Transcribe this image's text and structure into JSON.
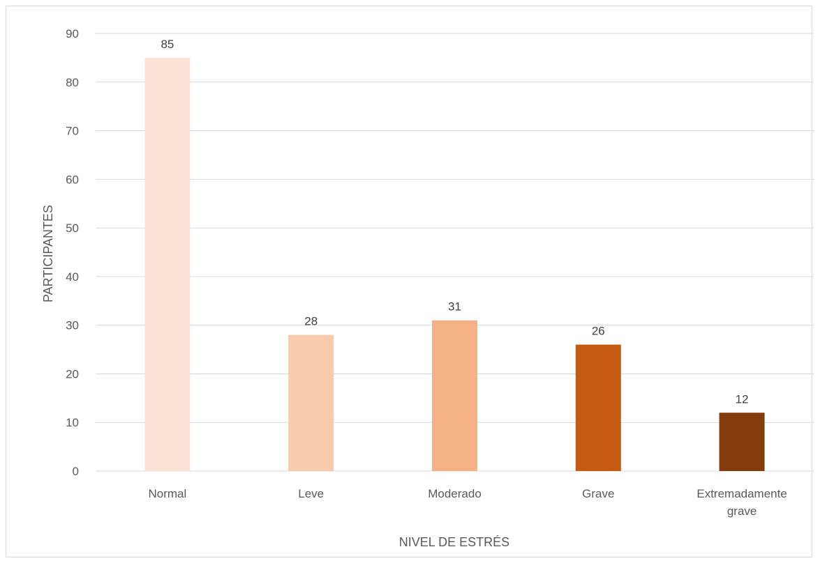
{
  "chart_data": {
    "type": "bar",
    "title": "",
    "xlabel": "NIVEL DE ESTRÉS",
    "ylabel": "PARTICIPANTES",
    "categories": [
      [
        "Normal"
      ],
      [
        "Leve"
      ],
      [
        "Moderado"
      ],
      [
        "Grave"
      ],
      [
        "Extremadamente",
        "grave"
      ]
    ],
    "values": [
      85,
      28,
      31,
      26,
      12
    ],
    "data_labels": [
      "85",
      "28",
      "31",
      "26",
      "12"
    ],
    "colors": [
      "#FAE3D5",
      "#F8CBAD",
      "#F4B183",
      "#C55A11",
      "#843C0C"
    ],
    "ylim": [
      0,
      90
    ],
    "yticks": [
      0,
      10,
      20,
      30,
      40,
      50,
      60,
      70,
      80,
      90
    ],
    "grid": true,
    "gridline_color": "#d9d9d9",
    "legend": "none"
  }
}
